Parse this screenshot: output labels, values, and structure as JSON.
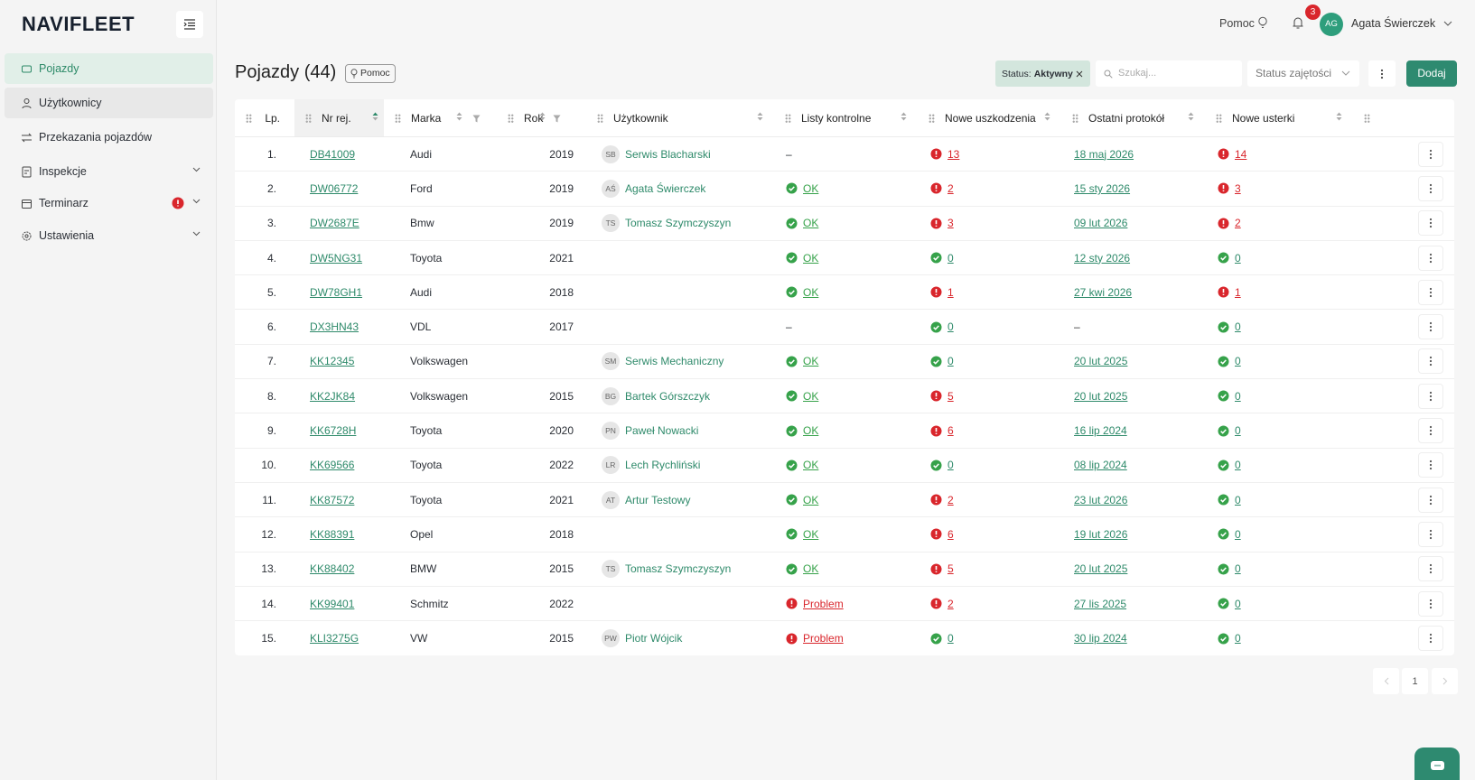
{
  "logo": "NAVIFLEET",
  "sidebar": [
    "Pojazdy",
    "Użytkownicy",
    "Przekazania pojazdów",
    "Inspekcje",
    "Terminarz",
    "Ustawienia"
  ],
  "topbar": {
    "help": "Pomoc",
    "notifications": 3,
    "avatar": "AG",
    "user": "Agata Świerczek"
  },
  "page": {
    "title": "Pojazdy (44)",
    "help": "Pomoc"
  },
  "toolbar": {
    "filter_label": "Status:",
    "filter_value": "Aktywny",
    "search_placeholder": "Szukaj...",
    "status_select": "Status zajętości",
    "add_button": "Dodaj"
  },
  "table": {
    "columns": [
      "Lp.",
      "Nr rej.",
      "Marka",
      "Rok",
      "Użytkownik",
      "Listy kontrolne",
      "Nowe uszkodzenia",
      "Ostatni protokół",
      "Nowe usterki"
    ],
    "rows": [
      {
        "no": "1.",
        "reg": "DB41009",
        "make": "Audi",
        "year": 2019,
        "initials": "SB",
        "user": "Serwis Blacharski",
        "checklist": "–",
        "checklist_color": null,
        "damages": 13,
        "protocol": "18 maj 2026",
        "defects": 14
      },
      {
        "no": "2.",
        "reg": "DW06772",
        "make": "Ford",
        "year": 2019,
        "initials": "AŚ",
        "user": "Agata Świerczek",
        "checklist": "OK",
        "checklist_color": "#36a24a",
        "damages": 2,
        "protocol": "15 sty 2026",
        "defects": 3
      },
      {
        "no": "3.",
        "reg": "DW2687E",
        "make": "Bmw",
        "year": 2019,
        "initials": "TS",
        "user": "Tomasz Szymczyszyn",
        "checklist": "OK",
        "checklist_color": "#36a24a",
        "damages": 3,
        "protocol": "09 lut 2026",
        "defects": 2
      },
      {
        "no": "4.",
        "reg": "DW5NG31",
        "make": "Toyota",
        "year": 2021,
        "initials": null,
        "user": null,
        "checklist": "OK",
        "checklist_color": "#36a24a",
        "damages": 0,
        "protocol": "12 sty 2026",
        "defects": 0
      },
      {
        "no": "5.",
        "reg": "DW78GH1",
        "make": "Audi",
        "year": 2018,
        "initials": null,
        "user": null,
        "checklist": "OK",
        "checklist_color": "#36a24a",
        "damages": 1,
        "protocol": "27 kwi 2026",
        "defects": 1
      },
      {
        "no": "6.",
        "reg": "DX3HN43",
        "make": "VDL",
        "year": 2017,
        "initials": null,
        "user": null,
        "checklist": "–",
        "checklist_color": null,
        "damages": 0,
        "protocol": "–",
        "defects": 0
      },
      {
        "no": "7.",
        "reg": "KK12345",
        "make": "Volkswagen",
        "year": null,
        "initials": "SM",
        "user": "Serwis Mechaniczny",
        "checklist": "OK",
        "checklist_color": "#36a24a",
        "damages": 0,
        "protocol": "20 lut 2025",
        "defects": 0
      },
      {
        "no": "8.",
        "reg": "KK2JK84",
        "make": "Volkswagen",
        "year": 2015,
        "initials": "BG",
        "user": "Bartek Górszczyk",
        "checklist": "OK",
        "checklist_color": "#36a24a",
        "damages": 5,
        "protocol": "20 lut 2025",
        "defects": 0
      },
      {
        "no": "9.",
        "reg": "KK6728H",
        "make": "Toyota",
        "year": 2020,
        "initials": "PN",
        "user": "Paweł Nowacki",
        "checklist": "OK",
        "checklist_color": "#36a24a",
        "damages": 6,
        "protocol": "16 lip 2024",
        "defects": 0
      },
      {
        "no": "10.",
        "reg": "KK69566",
        "make": "Toyota",
        "year": 2022,
        "initials": "LR",
        "user": "Lech Rychliński",
        "checklist": "OK",
        "checklist_color": "#36a24a",
        "damages": 0,
        "protocol": "08 lip 2024",
        "defects": 0
      },
      {
        "no": "11.",
        "reg": "KK87572",
        "make": "Toyota",
        "year": 2021,
        "initials": "AT",
        "user": "Artur Testowy",
        "checklist": "OK",
        "checklist_color": "#36a24a",
        "damages": 2,
        "protocol": "23 lut 2026",
        "defects": 0
      },
      {
        "no": "12.",
        "reg": "KK88391",
        "make": "Opel",
        "year": 2018,
        "initials": null,
        "user": null,
        "checklist": "OK",
        "checklist_color": "#36a24a",
        "damages": 6,
        "protocol": "19 lut 2026",
        "defects": 0
      },
      {
        "no": "13.",
        "reg": "KK88402",
        "make": "BMW",
        "year": 2015,
        "initials": "TS",
        "user": "Tomasz Szymczyszyn",
        "checklist": "OK",
        "checklist_color": "#36a24a",
        "damages": 5,
        "protocol": "20 lut 2025",
        "defects": 0
      },
      {
        "no": "14.",
        "reg": "KK99401",
        "make": "Schmitz",
        "year": 2022,
        "initials": null,
        "user": null,
        "checklist": "Problem",
        "checklist_color": "#d9262c",
        "damages": 2,
        "protocol": "27 lis 2025",
        "defects": 0
      },
      {
        "no": "15.",
        "reg": "KLI3275G",
        "make": "VW",
        "year": 2015,
        "initials": "PW",
        "user": "Piotr Wójcik",
        "checklist": "Problem",
        "checklist_color": "#d9262c",
        "damages": 0,
        "protocol": "30 lip 2024",
        "defects": 0
      }
    ]
  },
  "pagination": {
    "page": 1
  }
}
